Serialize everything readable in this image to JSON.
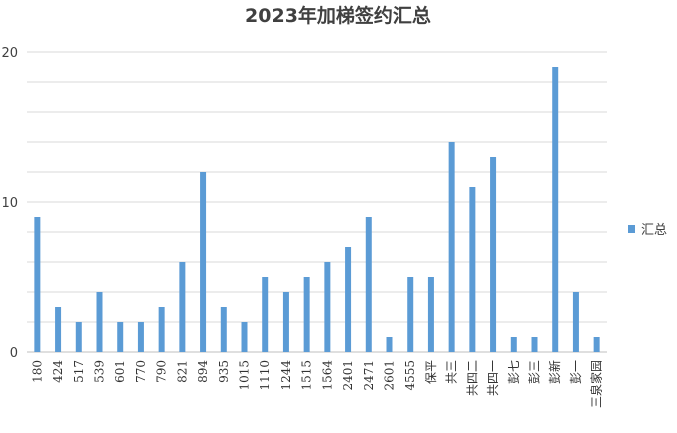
{
  "chart_data": {
    "type": "bar",
    "title": "2023年加梯签约汇总",
    "categories": [
      "180",
      "424",
      "517",
      "539",
      "601",
      "770",
      "790",
      "821",
      "894",
      "935",
      "1015",
      "1110",
      "1244",
      "1515",
      "1564",
      "2401",
      "2471",
      "2601",
      "4555",
      "保平",
      "共三",
      "共四二",
      "共四一",
      "彭七",
      "彭三",
      "彭新",
      "彭一",
      "三泉家园"
    ],
    "series": [
      {
        "name": "汇总",
        "values": [
          9,
          3,
          2,
          4,
          2,
          2,
          3,
          6,
          12,
          3,
          2,
          5,
          4,
          5,
          6,
          7,
          9,
          1,
          5,
          5,
          14,
          11,
          13,
          1,
          1,
          19,
          4,
          1
        ]
      }
    ],
    "ylim": [
      0,
      20
    ],
    "yticks": [
      0,
      10,
      20
    ],
    "grid": true,
    "legend_position": "right",
    "xlabel": "",
    "ylabel": "",
    "colors": {
      "bar": "#5b9bd5",
      "grid": "#d9d9d9",
      "text": "#404040"
    }
  }
}
